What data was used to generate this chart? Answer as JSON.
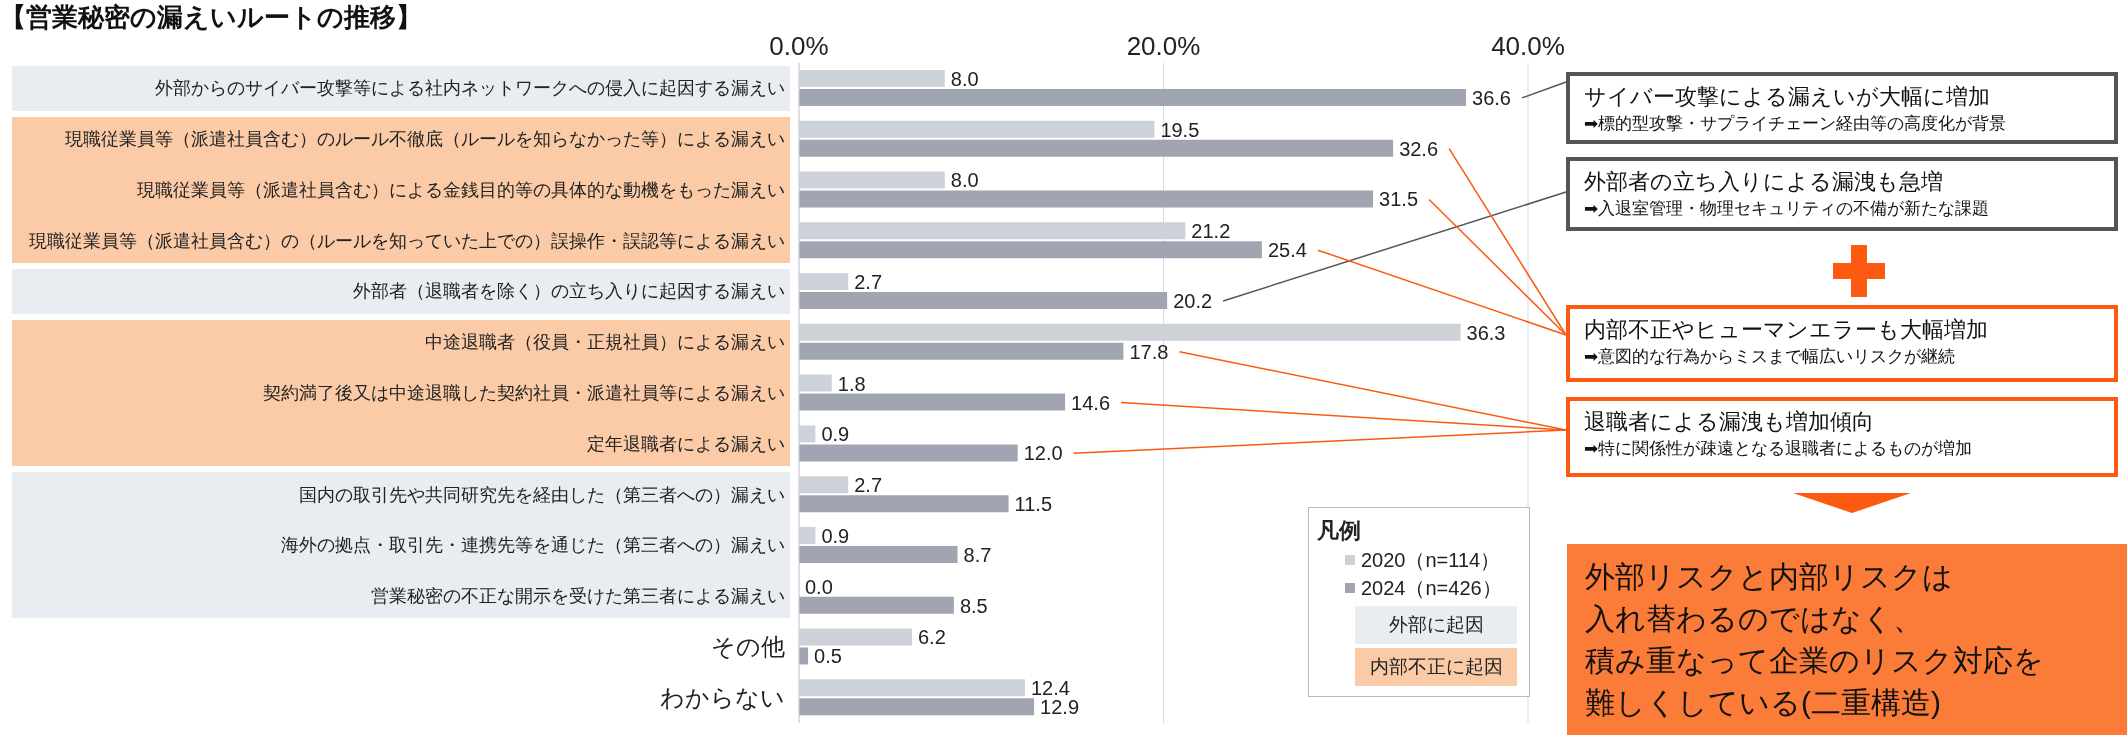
{
  "chart_data": {
    "type": "bar",
    "orientation": "horizontal",
    "title": "【営業秘密の漏えいルートの推移】",
    "categories": [
      "外部からのサイバー攻撃等による社内ネットワークへの侵入に起因する漏えい",
      "現職従業員等（派遣社員含む）のルール不徹底（ルールを知らなかった等）による漏えい",
      "現職従業員等（派遣社員含む）による金銭目的等の具体的な動機をもった漏えい",
      "現職従業員等（派遣社員含む）の（ルールを知っていた上での）誤操作・誤認等による漏えい",
      "外部者（退職者を除く）の立ち入りに起因する漏えい",
      "中途退職者（役員・正規社員）による漏えい",
      "契約満了後又は中途退職した契約社員・派遣社員等による漏えい",
      "定年退職者による漏えい",
      "国内の取引先や共同研究先を経由した（第三者への）漏えい",
      "海外の拠点・取引先・連携先等を通じた（第三者への）漏えい",
      "営業秘密の不正な開示を受けた第三者による漏えい",
      "その他",
      "わからない"
    ],
    "series": [
      {
        "name": "2020（n=114）",
        "color": "#cdd2d9",
        "values": [
          8.0,
          19.5,
          8.0,
          21.2,
          2.7,
          36.3,
          1.8,
          0.9,
          2.7,
          0.9,
          0.0,
          6.2,
          12.4
        ],
        "value_labels": [
          "8.0",
          "19.5",
          "8.0",
          "21.2",
          "2.7",
          "36.3",
          "1.8",
          "0.9",
          "2.7",
          "0.9",
          "0.0",
          "6.2",
          "12.4"
        ]
      },
      {
        "name": "2024（n=426）",
        "color": "#a0a5b1",
        "values": [
          36.6,
          32.6,
          31.5,
          25.4,
          20.2,
          17.8,
          14.6,
          12.0,
          11.5,
          8.7,
          8.5,
          0.5,
          12.9
        ],
        "value_labels": [
          "36.6",
          "32.6",
          "31.5",
          "25.4",
          "20.2",
          "17.8",
          "14.6",
          "12.0",
          "11.5",
          "8.7",
          "8.5",
          "0.5",
          "12.9"
        ]
      }
    ],
    "xlim": [
      0,
      40
    ],
    "xticks": [
      {
        "value": 0,
        "label": "0.0%"
      },
      {
        "value": 20,
        "label": "20.0%"
      },
      {
        "value": 40,
        "label": "40.0%"
      }
    ],
    "grid": "x",
    "legend": "bottom right",
    "legend_title": "凡例",
    "annotations": [
      "サイバー攻撃による漏えいが大幅に増加\n➡標的型攻撃・サプライチェーン経由等の高度化が背景",
      "外部者の立ち入りによる漏洩も急増\n➡入退室管理・物理セキュリティの不備が新たな課題",
      "内部不正やヒューマンエラーも大幅増加\n➡意図的な行為からミスまで幅広いリスクが継続",
      "退職者による漏洩も増加傾向\n➡特に関係性が疎遠となる退職者によるものが増加",
      "外部リスクと内部リスクは",
      "入れ替わるのではなく、",
      "積み重なって企業のリスク対応を",
      "難しくしている(二重構造)",
      "外部に起因",
      "内部不正に起因"
    ]
  }
}
